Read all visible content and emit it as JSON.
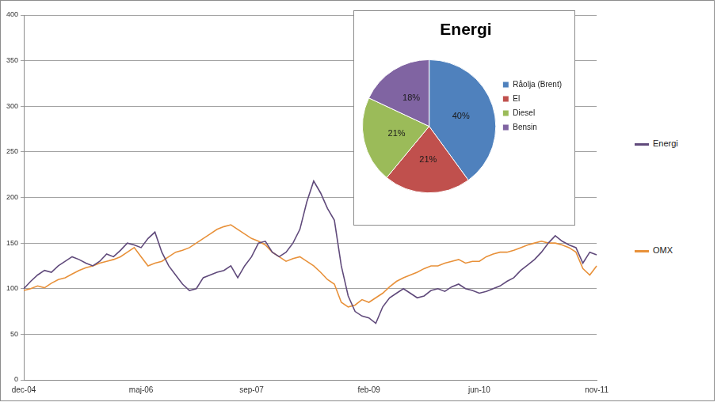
{
  "chart_data": [
    {
      "type": "line",
      "categories": [
        "dec-04",
        null,
        null,
        null,
        null,
        null,
        null,
        null,
        null,
        null,
        null,
        null,
        null,
        null,
        null,
        null,
        null,
        "maj-06",
        null,
        null,
        null,
        null,
        null,
        null,
        null,
        null,
        null,
        null,
        null,
        null,
        null,
        null,
        null,
        "sep-07",
        null,
        null,
        null,
        null,
        null,
        null,
        null,
        null,
        null,
        null,
        null,
        null,
        null,
        null,
        null,
        null,
        "feb-09",
        null,
        null,
        null,
        null,
        null,
        null,
        null,
        null,
        null,
        null,
        null,
        null,
        null,
        null,
        null,
        "jun-10",
        null,
        null,
        null,
        null,
        null,
        null,
        null,
        null,
        null,
        null,
        null,
        null,
        null,
        null,
        null,
        null,
        "nov-11"
      ],
      "series": [
        {
          "name": "Energi",
          "color": "#604a7b",
          "values": [
            100,
            108,
            115,
            120,
            118,
            125,
            130,
            135,
            132,
            128,
            125,
            130,
            138,
            135,
            142,
            150,
            148,
            145,
            155,
            162,
            140,
            125,
            115,
            105,
            98,
            100,
            112,
            115,
            118,
            120,
            125,
            112,
            125,
            135,
            150,
            152,
            140,
            135,
            140,
            150,
            165,
            195,
            218,
            205,
            188,
            175,
            125,
            92,
            75,
            70,
            68,
            62,
            80,
            90,
            95,
            100,
            95,
            90,
            92,
            98,
            100,
            97,
            102,
            105,
            100,
            98,
            95,
            97,
            100,
            103,
            108,
            112,
            120,
            126,
            132,
            140,
            150,
            158,
            152,
            148,
            145,
            128,
            140,
            137
          ]
        },
        {
          "name": "OMX",
          "color": "#e8913a",
          "values": [
            98,
            100,
            103,
            101,
            106,
            110,
            112,
            116,
            120,
            123,
            125,
            128,
            130,
            132,
            135,
            140,
            145,
            135,
            125,
            128,
            130,
            135,
            140,
            142,
            145,
            150,
            155,
            160,
            165,
            168,
            170,
            165,
            160,
            155,
            152,
            148,
            140,
            135,
            130,
            133,
            135,
            130,
            125,
            118,
            110,
            105,
            85,
            80,
            82,
            88,
            85,
            90,
            95,
            102,
            108,
            112,
            115,
            118,
            122,
            125,
            125,
            128,
            130,
            132,
            128,
            130,
            130,
            135,
            138,
            140,
            140,
            142,
            145,
            148,
            150,
            152,
            150,
            150,
            148,
            145,
            140,
            122,
            115,
            125
          ]
        }
      ],
      "ylim": [
        0,
        400
      ],
      "yticks": [
        0,
        50,
        100,
        150,
        200,
        250,
        300,
        350,
        400
      ],
      "grid": true,
      "legend": "right"
    },
    {
      "type": "pie",
      "title": "Energi",
      "categories": [
        "Råolja (Brent)",
        "El",
        "Diesel",
        "Bensin"
      ],
      "values": [
        40,
        21,
        21,
        18
      ],
      "value_labels": [
        "40%",
        "21%",
        "21%",
        "18%"
      ],
      "colors": [
        "#4f81bd",
        "#c0504d",
        "#9bbb59",
        "#8064a2"
      ],
      "data_labels": true,
      "legend": "right"
    }
  ]
}
